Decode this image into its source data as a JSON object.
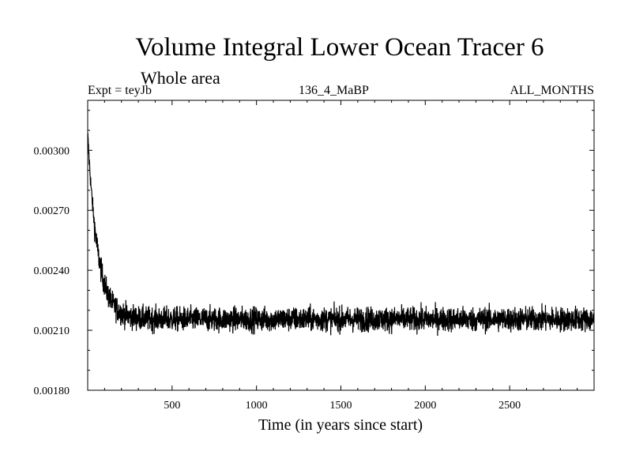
{
  "chart_data": {
    "type": "line",
    "title": "Volume Integral Lower Ocean Tracer 6",
    "subtitle": "Whole area",
    "experiment": "Expt = teyJb",
    "run_label": "136_4_MaBP",
    "period_label": "ALL_MONTHS",
    "xlabel": "Time (in years since start)",
    "ylabel": "",
    "xlim": [
      0,
      3000
    ],
    "ylim": [
      0.0018,
      0.00325
    ],
    "x_ticks": [
      500,
      1000,
      1500,
      2000,
      2500
    ],
    "x_tick_labels": [
      "500",
      "1000",
      "1500",
      "2000",
      "2500"
    ],
    "y_ticks": [
      0.0018,
      0.0021,
      0.0024,
      0.0027,
      0.003
    ],
    "y_tick_labels": [
      "0.00180",
      "0.00210",
      "0.00240",
      "0.00270",
      "0.00300"
    ],
    "grid": false,
    "series": [
      {
        "name": "Lower Ocean Tracer 6 volume integral",
        "color": "#000000",
        "initial_value": 0.00308,
        "equilibrium_value": 0.002155,
        "decay_timescale_years": 60,
        "noise_amplitude": 5.5e-05,
        "x_start": 1,
        "x_end": 3000,
        "x_step": 1
      }
    ]
  }
}
